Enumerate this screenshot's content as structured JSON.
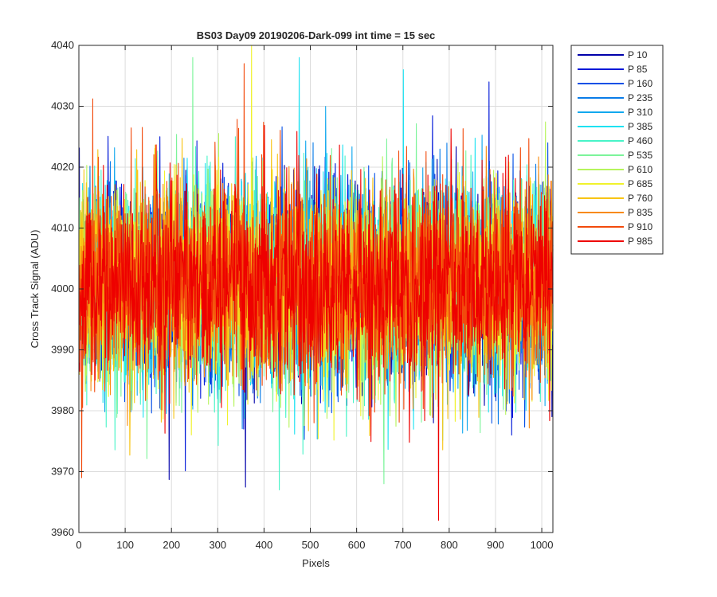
{
  "chart_data": {
    "type": "line",
    "title": "BS03 Day09 20190206-Dark-099 int time = 15 sec",
    "xlabel": "Pixels",
    "ylabel": "Cross Track Signal (ADU)",
    "xlim": [
      0,
      1024
    ],
    "ylim": [
      3960,
      4040
    ],
    "xticks": [
      0,
      100,
      200,
      300,
      400,
      500,
      600,
      700,
      800,
      900,
      1000
    ],
    "xtick_labels": [
      "0",
      "100",
      "200",
      "300",
      "400",
      "500",
      "600",
      "700",
      "800",
      "900",
      "1000"
    ],
    "yticks": [
      3960,
      3970,
      3980,
      3990,
      4000,
      4010,
      4020,
      4030,
      4040
    ],
    "ytick_labels": [
      "3960",
      "3970",
      "3980",
      "3990",
      "4000",
      "4010",
      "4020",
      "4030",
      "4040"
    ],
    "grid": true,
    "legend_position": "outside-top-right",
    "noise_model": {
      "n_points": 1024,
      "mean": 4001,
      "std": 8,
      "min": 3962,
      "max": 4040
    },
    "series": [
      {
        "name": "P 10",
        "color": "#0000aa"
      },
      {
        "name": "P 85",
        "color": "#0018d8"
      },
      {
        "name": "P 160",
        "color": "#0550e6"
      },
      {
        "name": "P 235",
        "color": "#0a7ce8"
      },
      {
        "name": "P 310",
        "color": "#12a8ee"
      },
      {
        "name": "P 385",
        "color": "#1ee2f2"
      },
      {
        "name": "P 460",
        "color": "#48f4c8"
      },
      {
        "name": "P 535",
        "color": "#7cf49a"
      },
      {
        "name": "P 610",
        "color": "#b6f45c"
      },
      {
        "name": "P 685",
        "color": "#f0f22c"
      },
      {
        "name": "P 760",
        "color": "#f8c414"
      },
      {
        "name": "P 835",
        "color": "#f88a0e"
      },
      {
        "name": "P 910",
        "color": "#f24a0c"
      },
      {
        "name": "P 985",
        "color": "#ee0000"
      }
    ],
    "annotated_extremes": [
      {
        "series": "P 685",
        "x": 372,
        "y": 4040
      },
      {
        "series": "P 910",
        "x": 356,
        "y": 4037
      },
      {
        "series": "P 385",
        "x": 475,
        "y": 4038
      },
      {
        "series": "P 535",
        "x": 245,
        "y": 4038
      },
      {
        "series": "P 985",
        "x": 776,
        "y": 3962
      },
      {
        "series": "P 910",
        "x": 5,
        "y": 3969
      },
      {
        "series": "P 460",
        "x": 432,
        "y": 3967
      },
      {
        "series": "P 535",
        "x": 658,
        "y": 3968
      },
      {
        "series": "P 85",
        "x": 885,
        "y": 4034
      },
      {
        "series": "P 385",
        "x": 700,
        "y": 4036
      }
    ]
  }
}
